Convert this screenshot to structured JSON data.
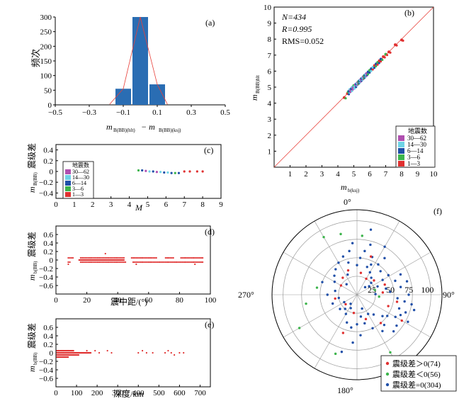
{
  "colors": {
    "bar": "#2a6db3",
    "line": "#e8403a",
    "red": "#e03030",
    "green": "#3cb44b",
    "blue": "#1f4fa8",
    "cyan": "#6fd3e6",
    "magenta": "#b04fb0",
    "grid": "#9a9a9a"
  },
  "chart_data": [
    {
      "id": "a",
      "type": "bar",
      "label": "(a)",
      "xlabel_main": "m",
      "xlabel_sub1": "B(BB)(hlt)",
      "xlabel_minus": "− m",
      "xlabel_sub2": "B(BB)(ksj)",
      "ylabel": "频次",
      "xlim": [
        -0.5,
        0.5
      ],
      "ylim": [
        0,
        300
      ],
      "xticks": [
        -0.5,
        -0.3,
        -0.1,
        0.1,
        0.3,
        0.5
      ],
      "xtick_labels": [
        "−0.5",
        "−0.3",
        "−0.1",
        "0.1",
        "0.3",
        "0.5"
      ],
      "yticks": [
        0,
        50,
        100,
        150,
        200,
        250,
        300
      ],
      "bins": [
        [
          -0.15,
          -0.05
        ],
        [
          -0.05,
          0.05
        ],
        [
          0.05,
          0.15
        ]
      ],
      "values": [
        55,
        300,
        70
      ],
      "fit_curve": [
        [
          -0.18,
          2
        ],
        [
          -0.1,
          55
        ],
        [
          0,
          300
        ],
        [
          0.1,
          70
        ],
        [
          0.16,
          2
        ]
      ]
    },
    {
      "id": "b",
      "type": "scatter",
      "label": "(b)",
      "stats": {
        "n": "N=434",
        "r": "R=0.995",
        "rms": "RMS=0.052"
      },
      "xlabel_main": "m",
      "xlabel_sub": "b(ksj)",
      "ylabel_main": "m",
      "ylabel_sub": "B(BB)hlt",
      "xlim": [
        0,
        10
      ],
      "ylim": [
        0,
        10
      ],
      "ticks": [
        1,
        2,
        3,
        4,
        5,
        6,
        7,
        8,
        9,
        10
      ],
      "tick_labels": [
        "1",
        "2",
        "3",
        "4",
        "5",
        "6",
        "7",
        "8",
        "9",
        "10"
      ],
      "reference_line": [
        [
          0,
          0
        ],
        [
          10,
          10
        ]
      ],
      "legend": {
        "title": "地震数",
        "items": [
          {
            "label": "30—62",
            "color": "#b04fb0"
          },
          {
            "label": "14—30",
            "color": "#6fd3e6"
          },
          {
            "label": "6—14",
            "color": "#1f4fa8"
          },
          {
            "label": "3—6",
            "color": "#3cb44b"
          },
          {
            "label": "1—3",
            "color": "#e03030"
          }
        ]
      },
      "points": [
        [
          4.4,
          4.35
        ],
        [
          4.6,
          4.6
        ],
        [
          4.65,
          4.7
        ],
        [
          4.7,
          4.75
        ],
        [
          4.75,
          4.85
        ],
        [
          4.8,
          4.8
        ],
        [
          4.85,
          4.9
        ],
        [
          4.9,
          5.0
        ],
        [
          4.95,
          4.95
        ],
        [
          5.0,
          5.1
        ],
        [
          5.05,
          5.05
        ],
        [
          5.1,
          5.15
        ],
        [
          5.15,
          5.2
        ],
        [
          5.2,
          5.25
        ],
        [
          5.25,
          5.3
        ],
        [
          5.3,
          5.35
        ],
        [
          5.35,
          5.4
        ],
        [
          5.4,
          5.45
        ],
        [
          5.45,
          5.5
        ],
        [
          5.5,
          5.55
        ],
        [
          5.55,
          5.6
        ],
        [
          5.6,
          5.65
        ],
        [
          5.65,
          5.7
        ],
        [
          5.7,
          5.75
        ],
        [
          5.75,
          5.8
        ],
        [
          5.8,
          5.85
        ],
        [
          5.9,
          5.95
        ],
        [
          6.0,
          6.05
        ],
        [
          6.1,
          6.15
        ],
        [
          6.2,
          6.25
        ],
        [
          6.3,
          6.35
        ],
        [
          6.4,
          6.45
        ],
        [
          6.5,
          6.55
        ],
        [
          6.6,
          6.65
        ],
        [
          6.7,
          6.75
        ],
        [
          6.85,
          6.9
        ],
        [
          7.0,
          7.05
        ],
        [
          7.2,
          7.2
        ],
        [
          7.6,
          7.65
        ],
        [
          8.0,
          7.95
        ]
      ],
      "point_colors": [
        "#e03030",
        "#e03030",
        "#3cb44b",
        "#1f4fa8",
        "#6fd3e6",
        "#b04fb0",
        "#1f4fa8",
        "#6fd3e6",
        "#b04fb0",
        "#3cb44b",
        "#6fd3e6",
        "#b04fb0",
        "#1f4fa8",
        "#6fd3e6",
        "#b04fb0",
        "#3cb44b",
        "#1f4fa8",
        "#6fd3e6",
        "#b04fb0",
        "#1f4fa8",
        "#6fd3e6",
        "#b04fb0",
        "#3cb44b",
        "#1f4fa8",
        "#6fd3e6",
        "#b04fb0",
        "#1f4fa8",
        "#3cb44b",
        "#1f4fa8",
        "#6fd3e6",
        "#e03030",
        "#1f4fa8",
        "#3cb44b",
        "#e03030",
        "#1f4fa8",
        "#e03030",
        "#3cb44b",
        "#e03030",
        "#e03030",
        "#e03030"
      ]
    },
    {
      "id": "c",
      "type": "scatter",
      "label": "(c)",
      "xlabel": "M",
      "ylabel_main": "m",
      "ylabel_sub": "B(BB)",
      "ylabel_cn": "震级差",
      "xlim": [
        0,
        9
      ],
      "ylim": [
        -0.5,
        0.5
      ],
      "xticks": [
        0,
        1,
        2,
        3,
        4,
        5,
        6,
        7,
        8,
        9
      ],
      "yticks": [
        0.4,
        0.2,
        0,
        -0.2,
        -0.4
      ],
      "ytick_labels": [
        "0.4",
        "0.2",
        "0",
        "−0.2",
        "−0.4"
      ],
      "legend": {
        "title": "地震数",
        "items": [
          {
            "label": "30—62",
            "color": "#b04fb0"
          },
          {
            "label": "14—30",
            "color": "#6fd3e6"
          },
          {
            "label": "6—14",
            "color": "#1f4fa8"
          },
          {
            "label": "3—6",
            "color": "#3cb44b"
          },
          {
            "label": "1—3",
            "color": "#e03030"
          }
        ]
      },
      "points": [
        [
          4.5,
          0.02
        ],
        [
          4.7,
          0.02
        ],
        [
          4.9,
          0.01
        ],
        [
          5.1,
          0.0
        ],
        [
          5.3,
          0.0
        ],
        [
          5.5,
          -0.01
        ],
        [
          5.7,
          -0.01
        ],
        [
          5.9,
          -0.02
        ],
        [
          6.1,
          -0.02
        ],
        [
          6.3,
          -0.03
        ],
        [
          6.5,
          -0.03
        ],
        [
          6.7,
          -0.03
        ],
        [
          7.0,
          0.0
        ],
        [
          7.3,
          0.0
        ],
        [
          7.7,
          0.0
        ],
        [
          8.0,
          0.0
        ]
      ],
      "point_colors": [
        "#3cb44b",
        "#1f4fa8",
        "#b04fb0",
        "#6fd3e6",
        "#1f4fa8",
        "#b04fb0",
        "#6fd3e6",
        "#1f4fa8",
        "#6fd3e6",
        "#1f4fa8",
        "#3cb44b",
        "#1f4fa8",
        "#e03030",
        "#e03030",
        "#e03030",
        "#e03030"
      ]
    },
    {
      "id": "d",
      "type": "scatter",
      "label": "(d)",
      "xlabel": "震中距/(°)",
      "ylabel_main": "m",
      "ylabel_sub": "b(BB)",
      "ylabel_cn": "震级差",
      "xlim": [
        0,
        100
      ],
      "ylim": [
        -0.8,
        0.8
      ],
      "xticks": [
        0,
        20,
        40,
        60,
        80,
        100
      ],
      "yticks": [
        0.6,
        0.4,
        0.2,
        0,
        -0.2,
        -0.4,
        -0.6
      ],
      "ytick_labels": [
        "0.6",
        "0.4",
        "0.2",
        "0",
        "−0.2",
        "−0.4",
        "−0.6"
      ],
      "rows": [
        {
          "y": 0.05,
          "x_start": 8,
          "x_end": 95,
          "step": 1.0,
          "gaps": [
            [
              12,
              15
            ],
            [
              45,
              48
            ],
            [
              66,
              70
            ],
            [
              77,
              80
            ]
          ]
        },
        {
          "y": -0.05,
          "x_start": 8,
          "x_end": 95,
          "step": 1.0,
          "gaps": [
            [
              10,
              15
            ],
            [
              46,
              49
            ]
          ]
        },
        {
          "y": 0,
          "x_start": 15,
          "x_end": 44,
          "step": 0.5,
          "gaps": []
        }
      ],
      "extra_points": [
        [
          32,
          0.15
        ],
        [
          8,
          -0.1
        ],
        [
          52,
          -0.1
        ],
        [
          90,
          -0.1
        ]
      ]
    },
    {
      "id": "e",
      "type": "scatter",
      "label": "(e)",
      "xlabel": "深度/km",
      "ylabel_main": "m",
      "ylabel_sub": "b(BB)",
      "ylabel_cn": "震级差",
      "xlim": [
        0,
        750
      ],
      "ylim": [
        -0.8,
        0.8
      ],
      "xticks": [
        0,
        100,
        200,
        300,
        400,
        500,
        600,
        700
      ],
      "yticks": [
        0.6,
        0.4,
        0.2,
        0,
        -0.2,
        -0.4,
        -0.6
      ],
      "ytick_labels": [
        "0.6",
        "0.4",
        "0.2",
        "0",
        "−0.2",
        "−0.4",
        "−0.6"
      ],
      "rows": [
        {
          "y": 0.05,
          "x_start": 5,
          "x_end": 85,
          "step": 4,
          "gaps": []
        },
        {
          "y": 0,
          "x_start": 5,
          "x_end": 170,
          "step": 2,
          "gaps": []
        },
        {
          "y": -0.05,
          "x_start": 5,
          "x_end": 110,
          "step": 3,
          "gaps": []
        },
        {
          "y": -0.1,
          "x_start": 5,
          "x_end": 60,
          "step": 3,
          "gaps": []
        }
      ],
      "extra_points": [
        [
          150,
          0.05
        ],
        [
          190,
          0.05
        ],
        [
          210,
          0.0
        ],
        [
          250,
          0.05
        ],
        [
          270,
          0.0
        ],
        [
          420,
          0.05
        ],
        [
          440,
          0.0
        ],
        [
          470,
          0.0
        ],
        [
          530,
          0.0
        ],
        [
          545,
          0.05
        ],
        [
          560,
          0.0
        ],
        [
          575,
          -0.05
        ],
        [
          600,
          0.0
        ],
        [
          620,
          0.0
        ],
        [
          400,
          0.0
        ]
      ]
    },
    {
      "id": "f",
      "type": "polar",
      "label": "(f)",
      "direction_labels": {
        "north": "0°",
        "east": "90°",
        "south": "180°",
        "west": "270°"
      },
      "rings": [
        25,
        50,
        75,
        100
      ],
      "ring_labels": [
        "25",
        "50",
        "75",
        "100"
      ],
      "rmax": 115,
      "legend": [
        {
          "label": "震级差＞0(74)",
          "color": "#e03030"
        },
        {
          "label": "震级差＜0(56)",
          "color": "#3cb44b"
        },
        {
          "label": "震级差=0(304)",
          "color": "#1f4fa8"
        }
      ],
      "points_blue": [
        [
          20,
          40
        ],
        [
          25,
          45
        ],
        [
          30,
          35
        ],
        [
          35,
          50
        ],
        [
          40,
          30
        ],
        [
          10,
          60
        ],
        [
          15,
          70
        ],
        [
          30,
          75
        ],
        [
          50,
          25
        ],
        [
          60,
          40
        ],
        [
          70,
          55
        ],
        [
          80,
          60
        ],
        [
          90,
          70
        ],
        [
          100,
          75
        ],
        [
          105,
          80
        ],
        [
          110,
          70
        ],
        [
          115,
          65
        ],
        [
          120,
          60
        ],
        [
          125,
          50
        ],
        [
          130,
          45
        ],
        [
          140,
          35
        ],
        [
          150,
          30
        ],
        [
          160,
          20
        ],
        [
          170,
          30
        ],
        [
          180,
          40
        ],
        [
          190,
          45
        ],
        [
          200,
          40
        ],
        [
          210,
          30
        ],
        [
          220,
          25
        ],
        [
          240,
          20
        ],
        [
          260,
          25
        ],
        [
          280,
          30
        ],
        [
          300,
          35
        ],
        [
          310,
          40
        ],
        [
          320,
          45
        ],
        [
          330,
          50
        ],
        [
          340,
          55
        ],
        [
          350,
          60
        ],
        [
          0,
          40
        ],
        [
          5,
          50
        ],
        [
          45,
          45
        ],
        [
          55,
          20
        ],
        [
          65,
          65
        ],
        [
          75,
          70
        ],
        [
          85,
          45
        ],
        [
          95,
          55
        ],
        [
          135,
          70
        ],
        [
          145,
          60
        ],
        [
          155,
          50
        ],
        [
          165,
          40
        ],
        [
          175,
          55
        ],
        [
          185,
          65
        ],
        [
          195,
          80
        ],
        [
          205,
          20
        ],
        [
          215,
          15
        ],
        [
          230,
          30
        ],
        [
          250,
          35
        ],
        [
          270,
          40
        ],
        [
          290,
          50
        ],
        [
          315,
          20
        ],
        [
          335,
          30
        ],
        [
          345,
          45
        ],
        [
          355,
          70
        ],
        [
          12,
          90
        ],
        [
          22,
          55
        ],
        [
          37,
          62
        ],
        [
          47,
          15
        ],
        [
          58,
          50
        ],
        [
          68,
          30
        ],
        [
          78,
          40
        ],
        [
          88,
          25
        ],
        [
          98,
          65
        ],
        [
          108,
          60
        ],
        [
          118,
          78
        ],
        [
          128,
          68
        ],
        [
          138,
          55
        ]
      ],
      "points_red": [
        [
          30,
          25
        ],
        [
          50,
          30
        ],
        [
          70,
          40
        ],
        [
          100,
          55
        ],
        [
          120,
          70
        ],
        [
          140,
          50
        ],
        [
          160,
          35
        ],
        [
          190,
          25
        ],
        [
          230,
          20
        ],
        [
          300,
          25
        ],
        [
          340,
          35
        ],
        [
          20,
          55
        ],
        [
          85,
          35
        ],
        [
          110,
          45
        ],
        [
          200,
          55
        ],
        [
          260,
          30
        ],
        [
          320,
          30
        ],
        [
          10,
          30
        ]
      ],
      "points_green": [
        [
          330,
          90
        ],
        [
          345,
          85
        ],
        [
          5,
          80
        ],
        [
          260,
          70
        ],
        [
          240,
          90
        ],
        [
          280,
          55
        ],
        [
          200,
          85
        ],
        [
          150,
          90
        ],
        [
          95,
          30
        ],
        [
          75,
          25
        ]
      ]
    }
  ]
}
